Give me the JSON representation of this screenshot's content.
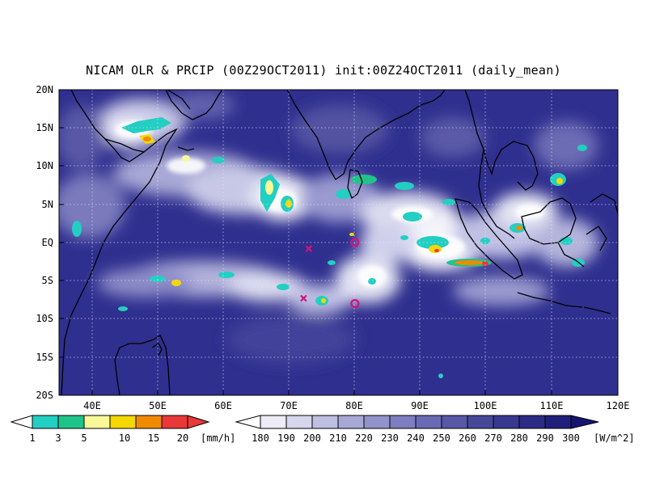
{
  "title": "NICAM OLR & PRCIP (00Z29OCT2011) init:00Z24OCT2011 (daily_mean)",
  "map": {
    "lon_range": [
      35,
      120
    ],
    "lat_range": [
      -20,
      20
    ],
    "x_ticks": [
      "40E",
      "50E",
      "60E",
      "70E",
      "80E",
      "90E",
      "100E",
      "110E",
      "120E"
    ],
    "y_ticks": [
      "20N",
      "15N",
      "10N",
      "5N",
      "EQ",
      "5S",
      "10S",
      "15S",
      "20S"
    ],
    "grid": "dotted",
    "ocean_color": "#2a2a8a",
    "cloud_color": "#f4f4fa",
    "markers": [
      {
        "type": "cross",
        "lon": 73,
        "lat": -0.8,
        "color": "#d0147a"
      },
      {
        "type": "cross",
        "lon": 72.2,
        "lat": -7.3,
        "color": "#d0147a"
      },
      {
        "type": "circle",
        "lon": 80,
        "lat": 0,
        "color": "#d0147a"
      },
      {
        "type": "circle",
        "lon": 80,
        "lat": -8,
        "color": "#d0147a"
      }
    ]
  },
  "precip_colorbar": {
    "labels": [
      "1",
      "3",
      "5",
      "10",
      "15",
      "20"
    ],
    "unit": "[mm/h]",
    "colors": [
      "#22cfc2",
      "#1fc48a",
      "#f8f898",
      "#f4d800",
      "#f08a00",
      "#e83838"
    ]
  },
  "olr_colorbar": {
    "labels": [
      "180",
      "190",
      "200",
      "210",
      "220",
      "230",
      "240",
      "250",
      "260",
      "270",
      "280",
      "290",
      "300"
    ],
    "unit": "[W/m^2]",
    "colors": [
      "#ecebf6",
      "#d6d6ec",
      "#bfbfe1",
      "#a8a8d6",
      "#9393cb",
      "#7e7ec0",
      "#6a6ab4",
      "#5858a7",
      "#47479a",
      "#383890",
      "#2c2c86",
      "#20207c",
      "#161672"
    ]
  }
}
